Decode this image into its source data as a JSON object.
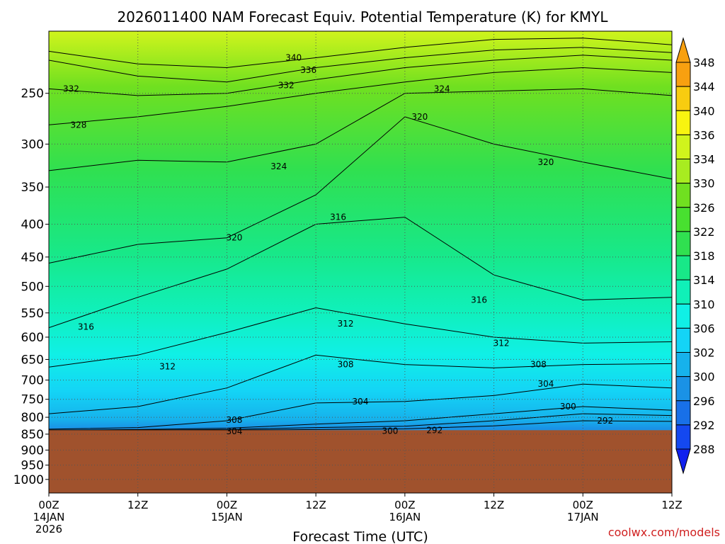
{
  "chart_data": {
    "type": "heatmap",
    "title": "2026011400 NAM Forecast Equiv. Potential Temperature (K) for KMYL",
    "xlabel": "Forecast Time (UTC)",
    "ylabel": "",
    "credit": "coolwx.com/models",
    "x_ticks": [
      {
        "hours": 0,
        "line1": "00Z",
        "line2": "14JAN",
        "line3": "2026"
      },
      {
        "hours": 12,
        "line1": "12Z",
        "line2": "",
        "line3": ""
      },
      {
        "hours": 24,
        "line1": "00Z",
        "line2": "15JAN",
        "line3": ""
      },
      {
        "hours": 36,
        "line1": "12Z",
        "line2": "",
        "line3": ""
      },
      {
        "hours": 48,
        "line1": "00Z",
        "line2": "16JAN",
        "line3": ""
      },
      {
        "hours": 60,
        "line1": "12Z",
        "line2": "",
        "line3": ""
      },
      {
        "hours": 72,
        "line1": "00Z",
        "line2": "17JAN",
        "line3": ""
      },
      {
        "hours": 84,
        "line1": "12Z",
        "line2": "",
        "line3": ""
      }
    ],
    "x_range_hours": [
      0,
      84
    ],
    "y_axis": {
      "scale": "log",
      "range_hpa": [
        1050,
        200
      ],
      "reversed": true,
      "ticks": [
        250,
        300,
        350,
        400,
        450,
        500,
        550,
        600,
        650,
        700,
        750,
        800,
        850,
        900,
        950,
        1000
      ]
    },
    "ground_pressure_hpa": 838,
    "colorbar": {
      "levels": [
        288,
        292,
        296,
        300,
        302,
        306,
        310,
        314,
        318,
        322,
        326,
        330,
        334,
        336,
        340,
        344,
        348
      ],
      "colors": [
        "#1020ee",
        "#1448f0",
        "#1870e8",
        "#1a92e6",
        "#16b2ec",
        "#14d4f6",
        "#10f0e6",
        "#10f0b8",
        "#18e888",
        "#30e050",
        "#48e030",
        "#70e020",
        "#a8ec20",
        "#d0f41c",
        "#f8f410",
        "#f8cc10",
        "#f8a010"
      ],
      "extend": "both"
    },
    "ground_color": "#a0522d",
    "contour_interval_k": 4,
    "contour_labels": [
      {
        "value": 340,
        "hours": 33,
        "hpa": 220
      },
      {
        "value": 336,
        "hours": 35,
        "hpa": 230
      },
      {
        "value": 332,
        "hours": 3,
        "hpa": 246
      },
      {
        "value": 332,
        "hours": 32,
        "hpa": 243
      },
      {
        "value": 328,
        "hours": 4,
        "hpa": 280
      },
      {
        "value": 324,
        "hours": 53,
        "hpa": 246
      },
      {
        "value": 324,
        "hours": 31,
        "hpa": 325
      },
      {
        "value": 320,
        "hours": 50,
        "hpa": 272
      },
      {
        "value": 320,
        "hours": 67,
        "hpa": 320
      },
      {
        "value": 320,
        "hours": 25,
        "hpa": 420
      },
      {
        "value": 316,
        "hours": 39,
        "hpa": 390
      },
      {
        "value": 316,
        "hours": 58,
        "hpa": 525
      },
      {
        "value": 316,
        "hours": 5,
        "hpa": 578
      },
      {
        "value": 312,
        "hours": 40,
        "hpa": 572
      },
      {
        "value": 312,
        "hours": 61,
        "hpa": 613
      },
      {
        "value": 312,
        "hours": 16,
        "hpa": 667
      },
      {
        "value": 308,
        "hours": 40,
        "hpa": 662
      },
      {
        "value": 308,
        "hours": 66,
        "hpa": 662
      },
      {
        "value": 308,
        "hours": 25,
        "hpa": 808
      },
      {
        "value": 304,
        "hours": 42,
        "hpa": 756
      },
      {
        "value": 304,
        "hours": 67,
        "hpa": 710
      },
      {
        "value": 304,
        "hours": 25,
        "hpa": 842
      },
      {
        "value": 300,
        "hours": 70,
        "hpa": 770
      },
      {
        "value": 300,
        "hours": 46,
        "hpa": 840
      },
      {
        "value": 292,
        "hours": 52,
        "hpa": 838
      },
      {
        "value": 292,
        "hours": 75,
        "hpa": 810
      }
    ],
    "grid": true,
    "legend_position": "right"
  }
}
